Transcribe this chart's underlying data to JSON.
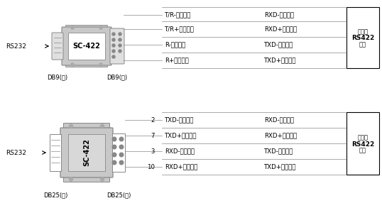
{
  "bg_color": "#ffffff",
  "text_color": "#000000",
  "gray_light": "#c8c8c8",
  "gray_mid": "#aaaaaa",
  "gray_dark": "#888888",
  "line_color": "#999999",
  "top_section": {
    "rs232_label": "RS232",
    "connector_label": "SC-422",
    "left_label1": "DB9(孔)",
    "left_label2": "DB9(针)",
    "rows": [
      {
        "left": "T/R-（发送）",
        "right": "RXD-（接收）"
      },
      {
        "left": "T/R+（发送）",
        "right": "RXD+（接收）"
      },
      {
        "left": "R-（接收）",
        "right": "TXD-（发送）"
      },
      {
        "left": "R+（接收）",
        "right": "TXD+（发送）"
      }
    ],
    "device_label": [
      "设备的",
      "RS422",
      "接口"
    ]
  },
  "bottom_section": {
    "rs232_label": "RS232",
    "connector_label": "SC-422",
    "left_label1": "DB25(孔)",
    "left_label2": "DB25(针)",
    "rows": [
      {
        "pin": "2",
        "left": "TXD-（发送）",
        "right": "RXD-（接收）"
      },
      {
        "pin": "7",
        "left": "TXD+（发送）",
        "right": "RXD+（接收）"
      },
      {
        "pin": "3",
        "left": "RXD-（接收）",
        "right": "TXD-（发送）"
      },
      {
        "pin": "10",
        "left": "RXD+（接收）",
        "right": "TXD+（发送）"
      }
    ],
    "device_label": [
      "设备的",
      "RS422",
      "接口"
    ]
  }
}
